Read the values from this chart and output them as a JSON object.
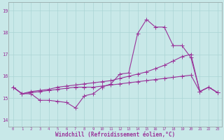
{
  "background_color": "#c8e8e8",
  "line_color": "#993399",
  "xlabel": "Windchill (Refroidissement éolien,°C)",
  "xlim": [
    -0.5,
    23.5
  ],
  "ylim": [
    13.7,
    19.4
  ],
  "yticks": [
    14,
    15,
    16,
    17,
    18,
    19
  ],
  "xticks": [
    0,
    1,
    2,
    3,
    4,
    5,
    6,
    7,
    8,
    9,
    10,
    11,
    12,
    13,
    14,
    15,
    16,
    17,
    18,
    19,
    20,
    21,
    22,
    23
  ],
  "s1_x": [
    0,
    1,
    2,
    3,
    4,
    5,
    6,
    7,
    8,
    9,
    10,
    11,
    12,
    13,
    14,
    15,
    16,
    17,
    18,
    19,
    20,
    21,
    22,
    23
  ],
  "s1_y": [
    15.5,
    15.2,
    15.2,
    14.9,
    14.9,
    14.85,
    14.8,
    14.55,
    15.1,
    15.2,
    15.5,
    15.65,
    16.1,
    16.15,
    17.95,
    18.6,
    18.25,
    18.25,
    17.4,
    17.4,
    16.85,
    15.3,
    15.5,
    15.25
  ],
  "s2_x": [
    0,
    1,
    2,
    3,
    4,
    5,
    6,
    7,
    8,
    9,
    10,
    11,
    12,
    13,
    14,
    15,
    16,
    17,
    18,
    19,
    20,
    21,
    22,
    23
  ],
  "s2_y": [
    15.5,
    15.2,
    15.25,
    15.3,
    15.35,
    15.4,
    15.45,
    15.5,
    15.5,
    15.5,
    15.55,
    15.6,
    15.65,
    15.7,
    15.75,
    15.8,
    15.85,
    15.9,
    15.95,
    16.0,
    16.05,
    15.3,
    15.5,
    15.25
  ],
  "s3_x": [
    0,
    1,
    2,
    3,
    4,
    5,
    6,
    7,
    8,
    9,
    10,
    11,
    12,
    13,
    14,
    15,
    16,
    17,
    18,
    19,
    20,
    21,
    22,
    23
  ],
  "s3_y": [
    15.5,
    15.2,
    15.3,
    15.35,
    15.4,
    15.5,
    15.55,
    15.6,
    15.65,
    15.7,
    15.75,
    15.8,
    15.9,
    16.0,
    16.1,
    16.2,
    16.35,
    16.5,
    16.7,
    16.9,
    17.0,
    15.3,
    15.5,
    15.25
  ],
  "grid_color": "#aad4d4",
  "spine_color": "#99aaaa"
}
